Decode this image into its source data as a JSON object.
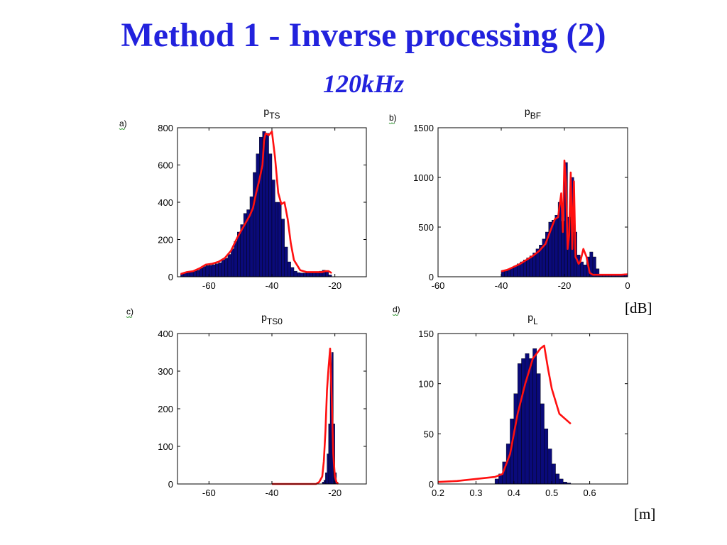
{
  "title": "Method 1 - Inverse processing (2)",
  "subtitle": "120kHz",
  "units": {
    "db": "[dB]",
    "m": "[m]"
  },
  "colors": {
    "bar": "#0a0a7a",
    "curve": "#ff1010",
    "title": "#2222dd"
  },
  "chart_data": [
    {
      "type": "bar",
      "panel": "a)",
      "title_main": "p",
      "title_sub": "TS",
      "xlim": [
        -70,
        -10
      ],
      "ylim": [
        0,
        800
      ],
      "xticks": [
        -60,
        -40,
        -20
      ],
      "yticks": [
        0,
        200,
        400,
        600,
        800
      ],
      "bins": {
        "start": -69,
        "width": 1,
        "values": [
          15,
          20,
          22,
          25,
          30,
          35,
          45,
          55,
          60,
          62,
          65,
          70,
          75,
          90,
          100,
          120,
          150,
          190,
          240,
          280,
          340,
          360,
          430,
          560,
          660,
          750,
          780,
          770,
          660,
          520,
          400,
          400,
          310,
          160,
          80,
          50,
          30,
          22,
          20,
          20,
          20,
          20,
          20,
          20,
          30,
          35,
          30,
          10,
          0,
          0
        ]
      },
      "curve": {
        "x": [
          -69,
          -67,
          -65,
          -63,
          -61,
          -59,
          -57,
          -55,
          -53,
          -51,
          -49,
          -47,
          -46,
          -45,
          -44,
          -43,
          -42.5,
          -42,
          -41,
          -40,
          -39,
          -38,
          -37,
          -36,
          -35,
          -34,
          -33,
          -31,
          -29,
          -27,
          -25,
          -24,
          -23,
          -22,
          -21
        ],
        "y": [
          15,
          25,
          30,
          45,
          65,
          70,
          80,
          100,
          140,
          210,
          270,
          330,
          370,
          450,
          520,
          600,
          730,
          770,
          760,
          780,
          640,
          450,
          390,
          400,
          310,
          180,
          90,
          35,
          25,
          25,
          25,
          25,
          30,
          30,
          20
        ]
      }
    },
    {
      "type": "bar",
      "panel": "b)",
      "title_main": "p",
      "title_sub": "BF",
      "xlim": [
        -60,
        0
      ],
      "ylim": [
        0,
        1500
      ],
      "xticks": [
        -60,
        -40,
        -20,
        0
      ],
      "yticks": [
        0,
        500,
        1000,
        1500
      ],
      "bins": {
        "start": -40,
        "width": 1,
        "values": [
          60,
          60,
          80,
          90,
          110,
          130,
          150,
          170,
          190,
          210,
          240,
          280,
          320,
          380,
          450,
          550,
          570,
          620,
          750,
          560,
          1150,
          600,
          1000,
          450,
          220,
          150,
          120,
          200,
          250,
          200,
          80,
          20,
          20,
          20,
          20,
          20,
          20,
          20,
          20,
          30
        ]
      },
      "curve": {
        "x": [
          -40,
          -38,
          -36,
          -34,
          -32,
          -30,
          -28,
          -26,
          -24,
          -23,
          -22,
          -21,
          -20.5,
          -20,
          -19.5,
          -19,
          -18.5,
          -18,
          -17.5,
          -17,
          -16.5,
          -16,
          -15.5,
          -15,
          -14,
          -13,
          -12,
          -11,
          -10,
          -8,
          -6,
          -4,
          -2,
          0
        ],
        "y": [
          55,
          70,
          100,
          130,
          170,
          210,
          260,
          330,
          500,
          580,
          600,
          840,
          450,
          1170,
          950,
          280,
          420,
          1050,
          280,
          960,
          200,
          170,
          130,
          150,
          280,
          200,
          40,
          20,
          20,
          20,
          20,
          20,
          20,
          25
        ]
      }
    },
    {
      "type": "bar",
      "panel": "c)",
      "title_main": "p",
      "title_sub": "TS0",
      "xlim": [
        -70,
        -10
      ],
      "ylim": [
        0,
        400
      ],
      "xticks": [
        -60,
        -40,
        -20
      ],
      "yticks": [
        0,
        100,
        200,
        300,
        400
      ],
      "bins": {
        "start": -24,
        "width": 0.5,
        "values": [
          5,
          10,
          30,
          80,
          160,
          300,
          350,
          160,
          30,
          5
        ]
      },
      "curve": {
        "x": [
          -40,
          -30,
          -26,
          -25,
          -24,
          -23.5,
          -23,
          -22.5,
          -22,
          -21.5,
          -21,
          -20.5,
          -20,
          -19.5,
          -19
        ],
        "y": [
          0,
          0,
          0,
          5,
          20,
          60,
          140,
          250,
          310,
          360,
          230,
          80,
          20,
          5,
          0
        ]
      }
    },
    {
      "type": "bar",
      "panel": "d)",
      "title_main": "p",
      "title_sub": "L",
      "xlim": [
        0.2,
        0.7
      ],
      "ylim": [
        0,
        150
      ],
      "xticks": [
        0.2,
        0.3,
        0.4,
        0.5,
        0.6
      ],
      "xticklabels": [
        "0.2",
        "0.3",
        "0.4",
        "0.5",
        "0.6"
      ],
      "yticks": [
        0,
        50,
        100,
        150
      ],
      "bins": {
        "start": 0.35,
        "width": 0.01,
        "values": [
          5,
          10,
          22,
          40,
          65,
          90,
          120,
          125,
          130,
          125,
          135,
          110,
          80,
          55,
          35,
          20,
          10,
          5,
          2,
          1
        ]
      },
      "curve": {
        "x": [
          0.2,
          0.25,
          0.3,
          0.35,
          0.37,
          0.39,
          0.41,
          0.43,
          0.45,
          0.47,
          0.48,
          0.49,
          0.5,
          0.52,
          0.55
        ],
        "y": [
          2,
          3,
          5,
          7,
          10,
          30,
          70,
          100,
          125,
          135,
          138,
          115,
          95,
          70,
          60
        ]
      }
    }
  ]
}
